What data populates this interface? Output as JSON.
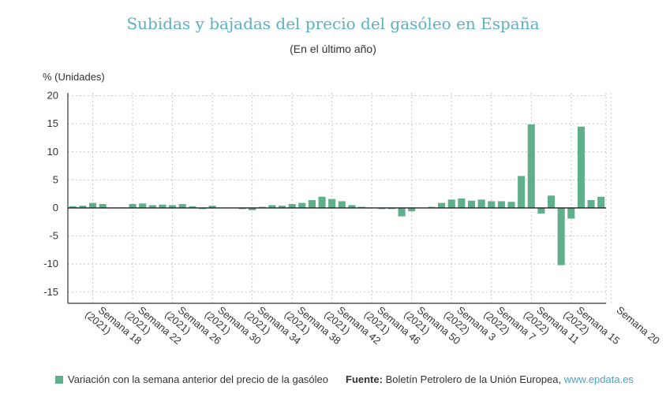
{
  "chart_data": {
    "type": "bar",
    "title": "Subidas y bajadas del precio del gasóleo en España",
    "subtitle": "(En el último año)",
    "ylabel": "% (Unidades)",
    "xlabel": "",
    "ylim": [
      -17,
      20.5
    ],
    "yticks": [
      20,
      15,
      10,
      5,
      0,
      -5,
      -10,
      -15
    ],
    "grid": true,
    "color": "#5fb08a",
    "series": [
      {
        "name": "Variación con la semana anterior del precio de la gasóleo",
        "values": [
          0.3,
          0.4,
          0.9,
          0.7,
          0.0,
          0.1,
          0.7,
          0.8,
          0.5,
          0.6,
          0.5,
          0.7,
          0.3,
          -0.2,
          0.4,
          0.0,
          0.0,
          -0.2,
          -0.4,
          0.2,
          0.5,
          0.4,
          0.7,
          0.9,
          1.4,
          2.0,
          1.6,
          1.2,
          0.5,
          0.2,
          0.0,
          -0.2,
          -0.2,
          -1.5,
          -0.6,
          0.0,
          0.2,
          0.9,
          1.5,
          1.7,
          1.3,
          1.5,
          1.2,
          1.2,
          1.1,
          5.7,
          14.9,
          -1.0,
          2.2,
          -10.2,
          -1.9,
          14.5,
          1.4,
          2.0
        ]
      }
    ],
    "x_labels": [
      {
        "week": "Semana 18",
        "year": "(2021)"
      },
      {
        "week": "Semana 22",
        "year": "(2021)"
      },
      {
        "week": "Semana 26",
        "year": "(2021)"
      },
      {
        "week": "Semana 30",
        "year": "(2021)"
      },
      {
        "week": "Semana 34",
        "year": "(2021)"
      },
      {
        "week": "Semana 38",
        "year": "(2021)"
      },
      {
        "week": "Semana 42",
        "year": "(2021)"
      },
      {
        "week": "Semana 46",
        "year": "(2021)"
      },
      {
        "week": "Semana 50",
        "year": "(2021)"
      },
      {
        "week": "Semana 3",
        "year": "(2022)"
      },
      {
        "week": "Semana 7",
        "year": "(2022)"
      },
      {
        "week": "Semana 11",
        "year": "(2022)"
      },
      {
        "week": "Semana 15",
        "year": "(2022)"
      },
      {
        "week": "Semana 20",
        "year": ""
      }
    ],
    "legend": "Variación con la semana anterior del precio de la gasóleo",
    "source_label": "Fuente:",
    "source_text": " Boletín Petrolero de la Unión Europea,",
    "source_link": " www.epdata.es"
  }
}
